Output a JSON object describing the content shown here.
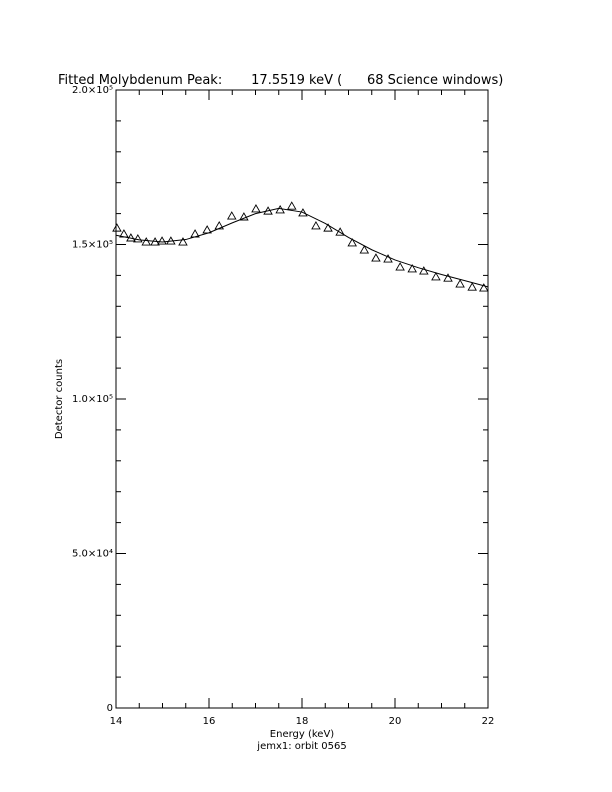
{
  "chart_data": {
    "type": "scatter",
    "title": "Fitted Molybdenum Peak:       17.5519 keV (      68 Science windows)",
    "x_label": "Energy (keV)",
    "subtitle": "jemx1: orbit 0565",
    "y_label": "Detector counts",
    "xlim": [
      14,
      22
    ],
    "xticks": [
      14,
      16,
      18,
      20,
      22
    ],
    "ylim": [
      0,
      200000
    ],
    "yticks": [
      {
        "value": 0,
        "label": "0"
      },
      {
        "value": 50000,
        "label": "5.0×10⁴"
      },
      {
        "value": 100000,
        "label": "1.0×10⁵"
      },
      {
        "value": 150000,
        "label": "1.5×10⁵"
      },
      {
        "value": 200000,
        "label": "2.0×10⁵"
      }
    ],
    "series": [
      {
        "name": "data",
        "color": "#000000",
        "marker": "triangle",
        "x": [
          14.02,
          14.17,
          14.32,
          14.47,
          14.65,
          14.84,
          14.99,
          15.18,
          15.44,
          15.7,
          15.96,
          16.22,
          16.49,
          16.75,
          17.01,
          17.27,
          17.53,
          17.78,
          18.02,
          18.3,
          18.56,
          18.82,
          19.08,
          19.34,
          19.59,
          19.85,
          20.11,
          20.37,
          20.62,
          20.88,
          21.14,
          21.4,
          21.66,
          21.91
        ],
        "values": [
          155300,
          153400,
          152100,
          151800,
          150800,
          150800,
          151100,
          151100,
          150800,
          153400,
          154700,
          156000,
          159200,
          158900,
          161500,
          160800,
          161200,
          162400,
          160200,
          156000,
          155300,
          154000,
          150500,
          148200,
          145600,
          145300,
          142700,
          142100,
          141400,
          139500,
          139100,
          137200,
          136200,
          135900
        ]
      },
      {
        "name": "fit",
        "color": "#000000",
        "marker": "line",
        "x": [
          14,
          14.5,
          15,
          15.5,
          16,
          16.5,
          17,
          17.5,
          18,
          18.5,
          19,
          19.5,
          20,
          20.5,
          21,
          21.5,
          22
        ],
        "values": [
          153000,
          151500,
          150800,
          151600,
          153800,
          157000,
          160000,
          161700,
          160500,
          156800,
          152300,
          148300,
          145000,
          142500,
          140300,
          138300,
          136300
        ]
      }
    ]
  }
}
